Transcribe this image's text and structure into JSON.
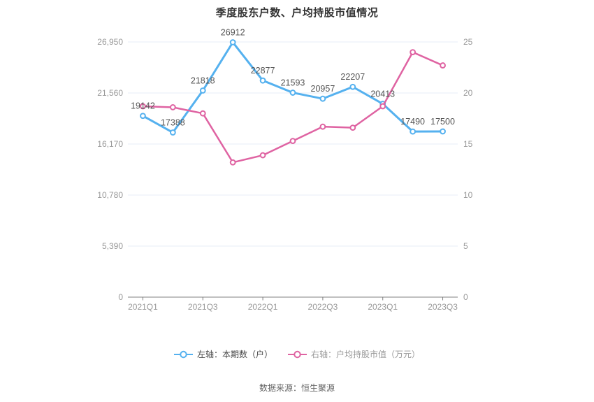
{
  "title": "季度股东户数、户均持股市值情况",
  "footer": {
    "source_text": "数据来源：恒生聚源"
  },
  "legend": [
    {
      "label": "左轴：本期数（户）",
      "color": "#55b1ef",
      "text_color": "#464646"
    },
    {
      "label": "右轴：户均持股市值（万元）",
      "color": "#df63a2",
      "text_color": "#999999"
    }
  ],
  "colors": {
    "grid_line": "#e7eef7",
    "axis_line": "#808080",
    "axis_label": "#999999",
    "data_label": "#555555",
    "series_blue": "#55b1ef",
    "series_pink": "#df63a2",
    "marker_fill": "#ffffff"
  },
  "chart_data": {
    "type": "line",
    "categories": [
      "2021Q1",
      "2021Q2",
      "2021Q3",
      "2021Q4",
      "2022Q1",
      "2022Q2",
      "2022Q3",
      "2022Q4",
      "2023Q1",
      "2023Q2",
      "2023Q3"
    ],
    "x_axis_shown_labels": [
      "2021Q1",
      "2021Q3",
      "2022Q1",
      "2022Q3",
      "2023Q1",
      "2023Q3"
    ],
    "series": [
      {
        "name": "左轴：本期数（户）",
        "axis": "left",
        "color": "#55b1ef",
        "show_labels": true,
        "values": [
          19142,
          17388,
          21818,
          26912,
          22877,
          21593,
          20957,
          22207,
          20413,
          17490,
          17500
        ]
      },
      {
        "name": "右轴：户均持股市值（万元）",
        "axis": "right",
        "color": "#df63a2",
        "show_labels": false,
        "values": [
          18.7,
          18.6,
          18.0,
          13.2,
          13.9,
          15.3,
          16.7,
          16.6,
          18.7,
          24.0,
          22.7
        ]
      }
    ],
    "left_axis": {
      "title": "本期数（户）",
      "max": 26950,
      "ticks": [
        0,
        5390,
        10780,
        16170,
        21560,
        26950
      ],
      "tick_labels": [
        "0",
        "5,390",
        "10,780",
        "16,170",
        "21,560",
        "26,950"
      ]
    },
    "right_axis": {
      "title": "户均持股市值（万元）",
      "max": 25,
      "ticks": [
        0,
        5,
        10,
        15,
        20,
        25
      ],
      "tick_labels": [
        "0",
        "5",
        "10",
        "15",
        "20",
        "25"
      ]
    },
    "grid": true,
    "legend_position": "bottom"
  }
}
